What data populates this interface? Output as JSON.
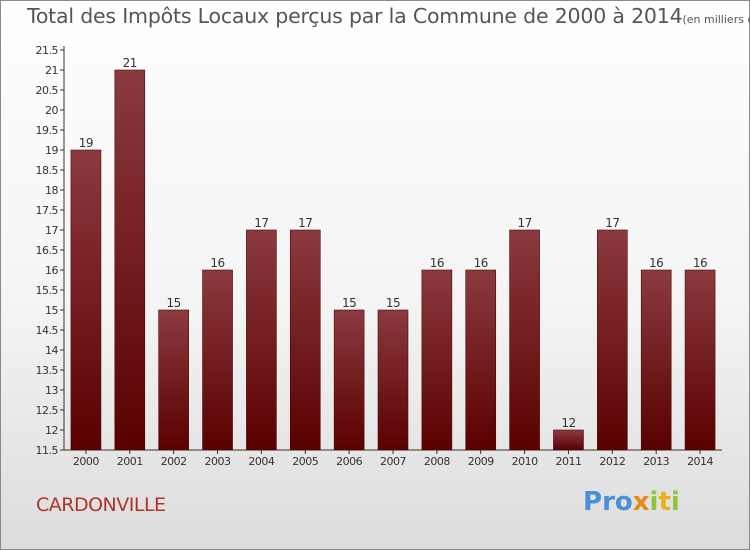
{
  "header": {
    "title": "Total des Impôts Locaux perçus par la Commune de 2000 à 2014",
    "title_unit": "(en milliers d'€)"
  },
  "footer": {
    "commune": "CARDONVILLE",
    "logo_letters": [
      "P",
      "r",
      "o",
      "x",
      "i",
      "t",
      "i"
    ],
    "logo_colors": [
      "#4a90d9",
      "#4a90d9",
      "#4a90d9",
      "#e88a1a",
      "#8dc63f",
      "#e8b11a",
      "#8dc63f"
    ]
  },
  "chart_data": {
    "type": "bar",
    "categories": [
      "2000",
      "2001",
      "2002",
      "2003",
      "2004",
      "2005",
      "2006",
      "2007",
      "2008",
      "2009",
      "2010",
      "2011",
      "2012",
      "2013",
      "2014"
    ],
    "values": [
      19,
      21,
      15,
      16,
      17,
      17,
      15,
      15,
      16,
      16,
      17,
      12,
      17,
      16,
      16
    ],
    "data_labels": [
      "19",
      "21",
      "15",
      "16",
      "17",
      "17",
      "15",
      "15",
      "16",
      "16",
      "17",
      "12",
      "17",
      "16",
      "16"
    ],
    "ylim": [
      11.5,
      21.5
    ],
    "yticks": [
      "11.5",
      "12",
      "12.5",
      "13",
      "13.5",
      "14",
      "14.5",
      "15",
      "15.5",
      "16",
      "16.5",
      "17",
      "17.5",
      "18",
      "18.5",
      "19",
      "19.5",
      "20",
      "20.5",
      "21",
      "21.5"
    ],
    "grid": false,
    "colors": {
      "bar_top": "#8b3a3f",
      "bar_bottom": "#5a0000",
      "bar_edge": "#4a0a0a"
    }
  }
}
